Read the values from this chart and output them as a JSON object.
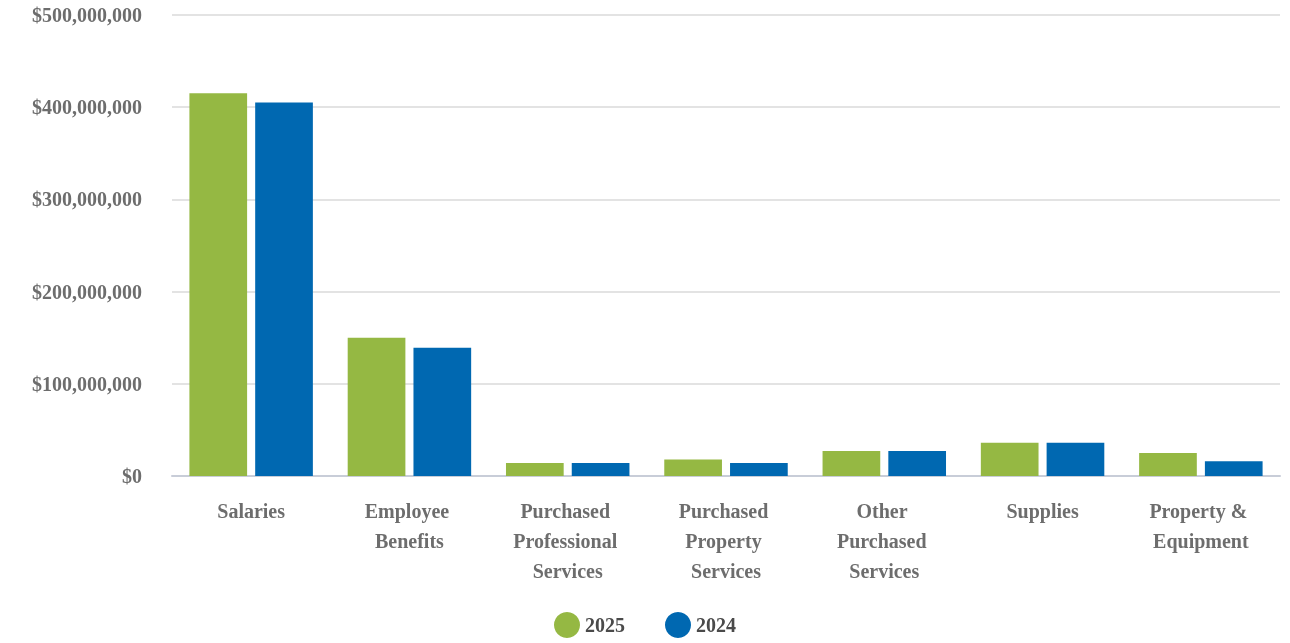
{
  "chart_data": {
    "type": "bar",
    "categories": [
      "Salaries",
      "Employee Benefits",
      "Purchased Professional Services",
      "Purchased Property Services",
      "Other Purchased Services",
      "Supplies",
      "Property & Equipment"
    ],
    "series": [
      {
        "name": "2025",
        "color": "#95b843",
        "values": [
          415000000,
          150000000,
          14000000,
          18000000,
          27000000,
          36000000,
          25000000
        ]
      },
      {
        "name": "2024",
        "color": "#0068b1",
        "values": [
          405000000,
          139000000,
          14000000,
          14000000,
          27000000,
          36000000,
          16000000
        ]
      }
    ],
    "ylim": [
      0,
      500000000
    ],
    "yticks": [
      {
        "value": 0,
        "label": "$0"
      },
      {
        "value": 100000000,
        "label": "$100,000,000"
      },
      {
        "value": 200000000,
        "label": "$200,000,000"
      },
      {
        "value": 300000000,
        "label": "$300,000,000"
      },
      {
        "value": 400000000,
        "label": "$400,000,000"
      },
      {
        "value": 500000000,
        "label": "$500,000,000"
      }
    ],
    "grid": "y",
    "legend": "bottom"
  }
}
